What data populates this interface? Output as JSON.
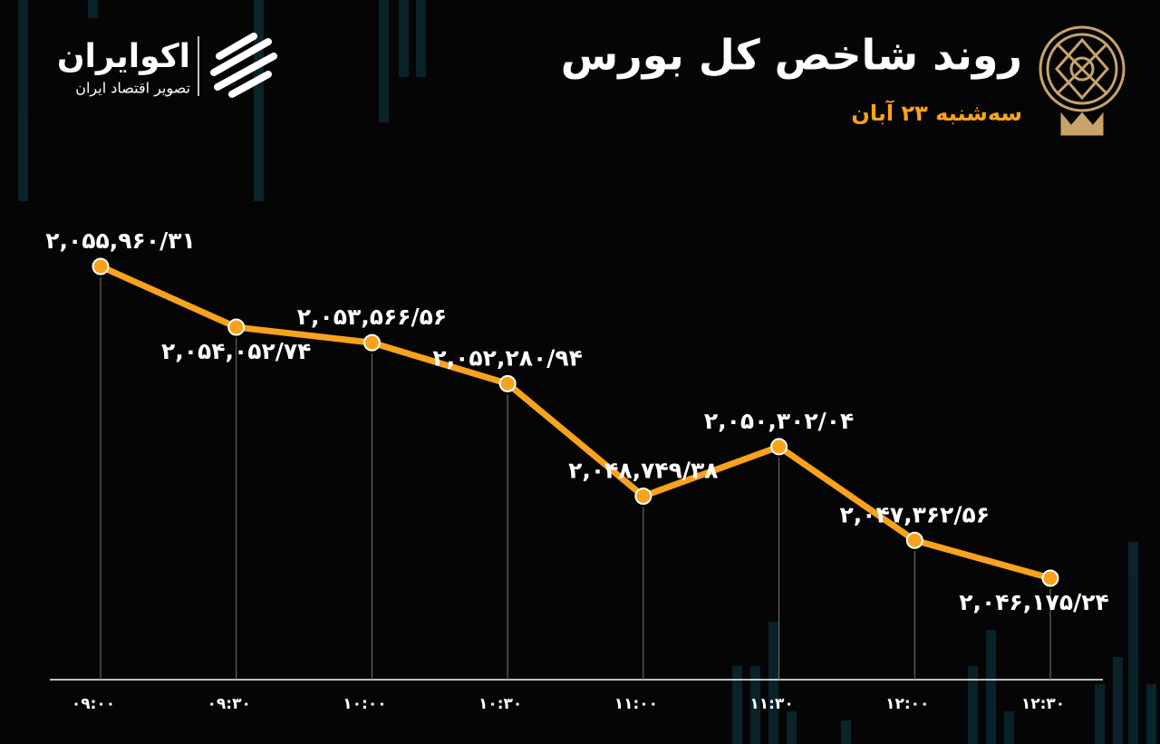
{
  "brand": {
    "name": "اکوایران",
    "tagline": "تصویر اقتصاد ایران"
  },
  "chart_data": {
    "type": "line",
    "title": "روند شاخص کل بورس",
    "subtitle": "سه‌شنبه ۲۳ آبان",
    "categories": [
      "۰۹:۰۰",
      "۰۹:۳۰",
      "۱۰:۰۰",
      "۱۰:۳۰",
      "۱۱:۰۰",
      "۱۱:۳۰",
      "۱۲:۰۰",
      "۱۲:۳۰"
    ],
    "series": [
      {
        "color": "#f9a21b",
        "values": [
          2055960.31,
          2054052.74,
          2053566.56,
          2052280.94,
          2048749.38,
          2050302.04,
          2047362.56,
          2046175.24
        ],
        "value_labels": [
          "۲,۰۵۵,۹۶۰/۳۱",
          "۲,۰۵۴,۰۵۲/۷۴",
          "۲,۰۵۳,۵۶۶/۵۶",
          "۲,۰۵۲,۲۸۰/۹۴",
          "۲,۰۴۸,۷۴۹/۳۸",
          "۲,۰۵۰,۳۰۲/۰۴",
          "۲,۰۴۷,۳۶۲/۵۶",
          "۲,۰۴۶,۱۷۵/۲۴"
        ]
      }
    ]
  }
}
